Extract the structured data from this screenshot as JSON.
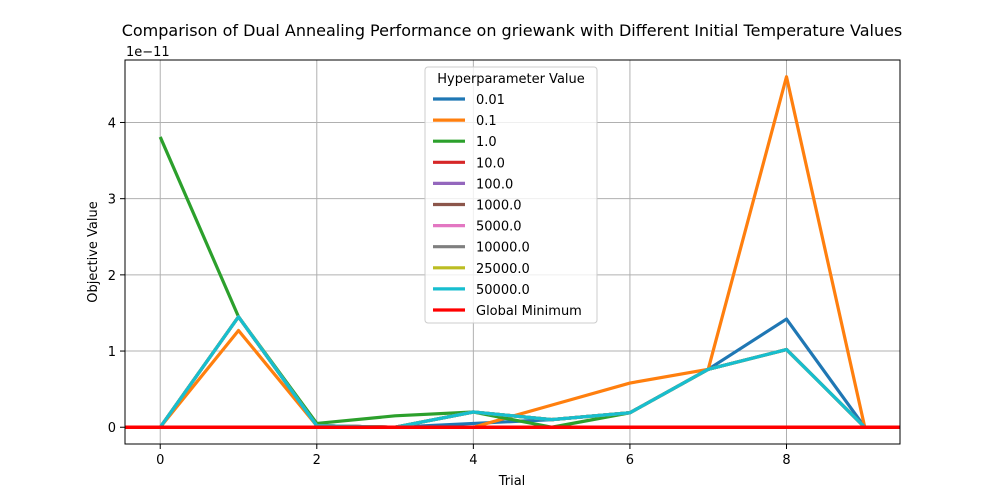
{
  "chart_data": {
    "type": "line",
    "title": "Comparison of Dual Annealing Performance on griewank with Different Initial Temperature Values",
    "xlabel": "Trial",
    "ylabel": "Objective Value",
    "y_scale_label": "1e−11",
    "xlim": [
      -0.45,
      9.45
    ],
    "ylim": [
      -0.22,
      4.82
    ],
    "xticks": [
      "0",
      "2",
      "4",
      "6",
      "8"
    ],
    "yticks": [
      "0",
      "1",
      "2",
      "3",
      "4"
    ],
    "grid": true,
    "legend": {
      "title": "Hyperparameter Value",
      "placement": "top-center"
    },
    "x": [
      0,
      1,
      2,
      3,
      4,
      5,
      6,
      7,
      8,
      9
    ],
    "series": [
      {
        "name": "0.01",
        "color": "#1f77b4",
        "values": [
          0.0,
          1.45,
          0.02,
          0.0,
          0.05,
          0.1,
          0.19,
          0.76,
          1.42,
          0.0
        ]
      },
      {
        "name": "0.1",
        "color": "#ff7f0e",
        "values": [
          0.0,
          1.27,
          0.02,
          0.0,
          0.0,
          0.29,
          0.58,
          0.76,
          4.6,
          0.0
        ]
      },
      {
        "name": "1.0",
        "color": "#2ca02c",
        "values": [
          3.81,
          1.45,
          0.05,
          0.15,
          0.2,
          0.0,
          0.19,
          0.76,
          1.02,
          0.0
        ]
      },
      {
        "name": "10.0",
        "color": "#d62728",
        "values": [
          0.0,
          1.45,
          0.02,
          0.0,
          0.2,
          0.1,
          0.19,
          0.76,
          1.02,
          0.0
        ]
      },
      {
        "name": "100.0",
        "color": "#9467bd",
        "values": [
          0.0,
          1.45,
          0.02,
          0.0,
          0.2,
          0.1,
          0.19,
          0.76,
          1.02,
          0.0
        ]
      },
      {
        "name": "1000.0",
        "color": "#8c564b",
        "values": [
          0.0,
          1.45,
          0.02,
          0.0,
          0.2,
          0.1,
          0.19,
          0.76,
          1.02,
          0.0
        ]
      },
      {
        "name": "5000.0",
        "color": "#e377c2",
        "values": [
          0.0,
          1.45,
          0.02,
          0.0,
          0.2,
          0.1,
          0.19,
          0.76,
          1.02,
          0.0
        ]
      },
      {
        "name": "10000.0",
        "color": "#7f7f7f",
        "values": [
          0.0,
          1.45,
          0.02,
          0.0,
          0.2,
          0.1,
          0.19,
          0.76,
          1.02,
          0.0
        ]
      },
      {
        "name": "25000.0",
        "color": "#bcbd22",
        "values": [
          0.0,
          1.45,
          0.02,
          0.0,
          0.2,
          0.1,
          0.19,
          0.76,
          1.02,
          0.0
        ]
      },
      {
        "name": "50000.0",
        "color": "#17becf",
        "values": [
          0.0,
          1.45,
          0.02,
          0.0,
          0.2,
          0.1,
          0.19,
          0.76,
          1.02,
          0.0
        ]
      }
    ],
    "reference_line": {
      "name": "Global Minimum",
      "value": 0,
      "color": "#ff0000"
    }
  }
}
